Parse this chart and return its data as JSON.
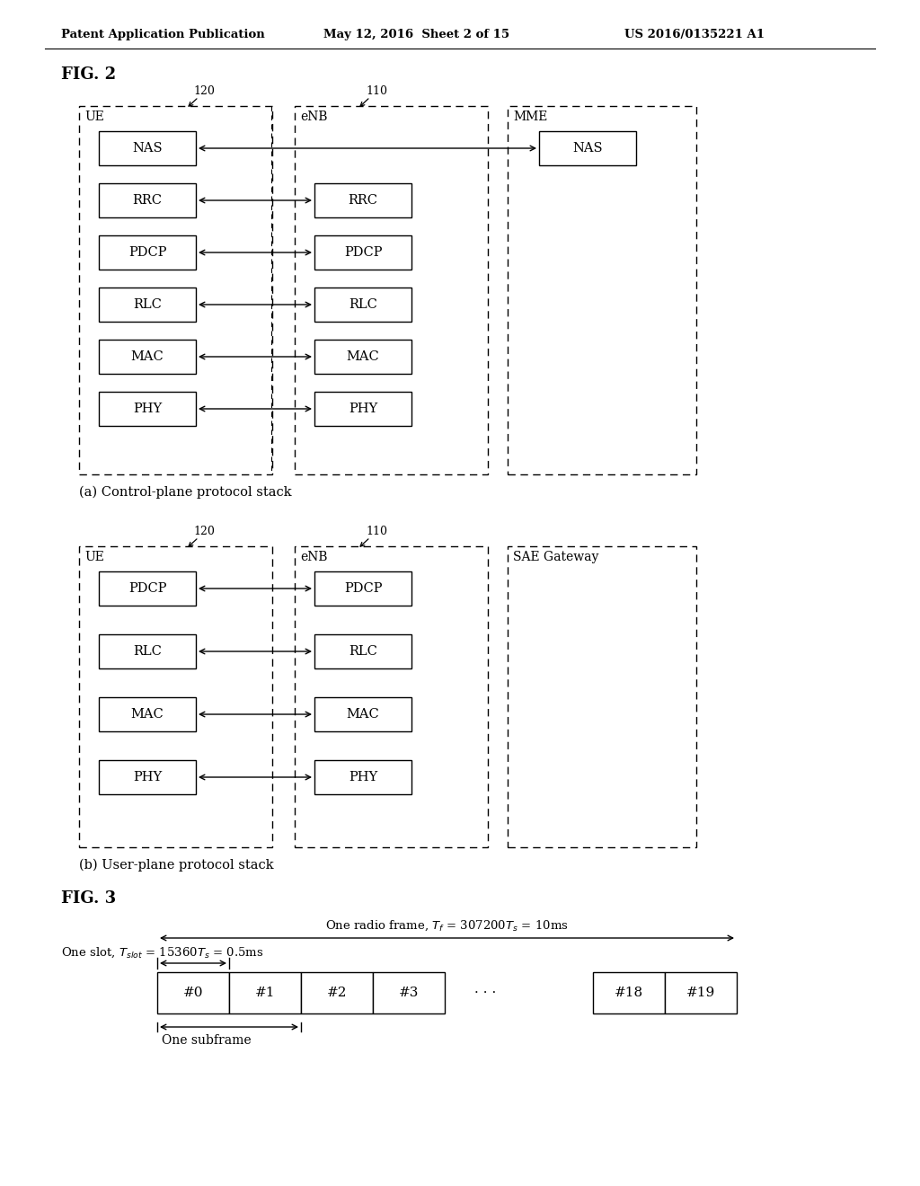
{
  "bg_color": "#ffffff",
  "header_text": "Patent Application Publication",
  "header_date": "May 12, 2016  Sheet 2 of 15",
  "header_patent": "US 2016/0135221 A1",
  "fig2_label": "FIG. 2",
  "fig3_label": "FIG. 3",
  "caption_a": "(a) Control-plane protocol stack",
  "caption_b": "(b) User-plane protocol stack",
  "label_120a": "120",
  "label_110a": "110",
  "label_120b": "120",
  "label_110b": "110",
  "ue_label": "UE",
  "enb_label": "eNB",
  "mme_label": "MME",
  "sae_label": "SAE Gateway",
  "ctrl_ue_layers": [
    "NAS",
    "RRC",
    "PDCP",
    "RLC",
    "MAC",
    "PHY"
  ],
  "ctrl_enb_layers": [
    "RRC",
    "PDCP",
    "RLC",
    "MAC",
    "PHY"
  ],
  "ctrl_mme_layers": [
    "NAS"
  ],
  "user_ue_layers": [
    "PDCP",
    "RLC",
    "MAC",
    "PHY"
  ],
  "user_enb_layers": [
    "PDCP",
    "RLC",
    "MAC",
    "PHY"
  ],
  "frame_label": "One radio frame, $T_f$ = 307200$T_s$ = 10ms",
  "slot_label": "One slot, $T_{slot}$ = 15360$T_s$ = 0.5ms",
  "subframe_label": "One subframe",
  "slot_labels": [
    "#0",
    "#1",
    "#2",
    "#3",
    "...",
    "#18",
    "#19"
  ]
}
